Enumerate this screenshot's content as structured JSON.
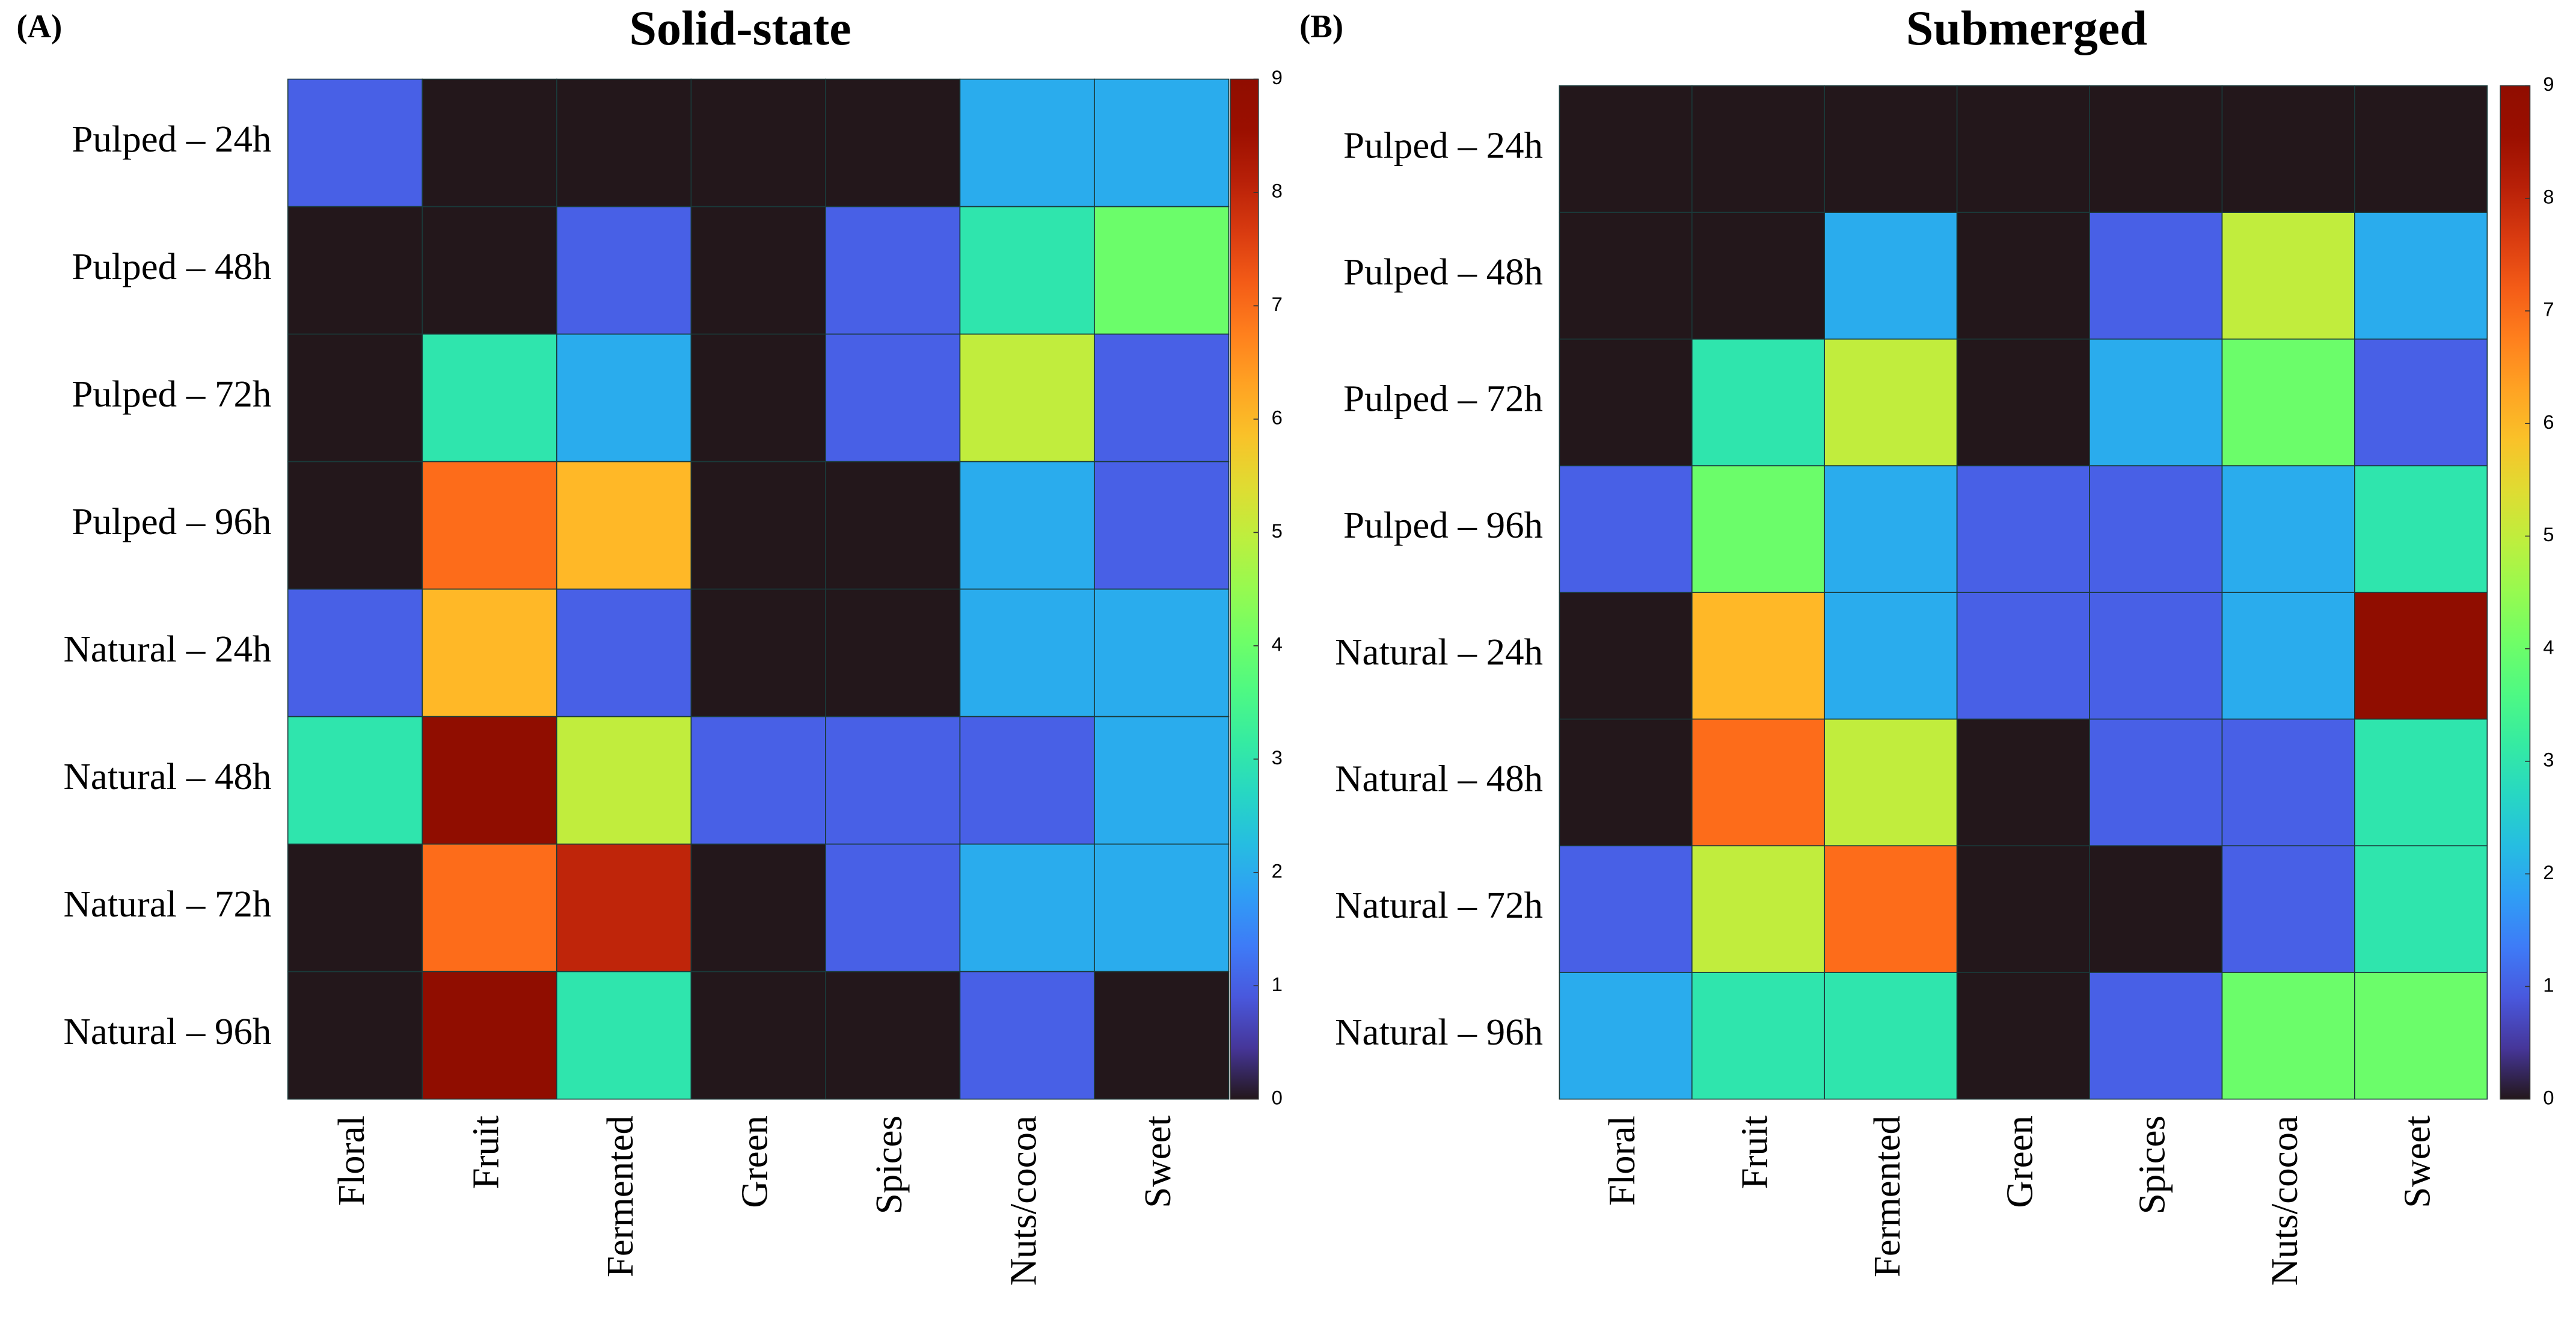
{
  "chart_data": [
    {
      "type": "heatmap",
      "panel_label": "(A)",
      "title": "Solid-state",
      "x_categories": [
        "Floral",
        "Fruit",
        "Fermented",
        "Green",
        "Spices",
        "Nuts/cocoa",
        "Sweet"
      ],
      "y_categories": [
        "Pulped – 24h",
        "Pulped – 48h",
        "Pulped – 72h",
        "Pulped – 96h",
        "Natural – 24h",
        "Natural – 48h",
        "Natural – 72h",
        "Natural – 96h"
      ],
      "values": [
        [
          1,
          0,
          0,
          0,
          0,
          2,
          2
        ],
        [
          0,
          0,
          1,
          0,
          1,
          3,
          4
        ],
        [
          0,
          3,
          2,
          0,
          1,
          5,
          1
        ],
        [
          0,
          7,
          6,
          0,
          0,
          2,
          1
        ],
        [
          1,
          6,
          1,
          0,
          0,
          2,
          2
        ],
        [
          3,
          9,
          5,
          1,
          1,
          1,
          2
        ],
        [
          0,
          7,
          8,
          0,
          1,
          2,
          2
        ],
        [
          0,
          9,
          3,
          0,
          0,
          1,
          0
        ]
      ],
      "colormap": "turbo",
      "clim": [
        0,
        9
      ],
      "colorbar_ticks": [
        0,
        1,
        2,
        3,
        4,
        5,
        6,
        7,
        8,
        9
      ]
    },
    {
      "type": "heatmap",
      "panel_label": "(B)",
      "title": "Submerged",
      "x_categories": [
        "Floral",
        "Fruit",
        "Fermented",
        "Green",
        "Spices",
        "Nuts/cocoa",
        "Sweet"
      ],
      "y_categories": [
        "Pulped – 24h",
        "Pulped – 48h",
        "Pulped – 72h",
        "Pulped – 96h",
        "Natural – 24h",
        "Natural – 48h",
        "Natural – 72h",
        "Natural – 96h"
      ],
      "values": [
        [
          0,
          0,
          0,
          0,
          0,
          0,
          0
        ],
        [
          0,
          0,
          2,
          0,
          1,
          5,
          2
        ],
        [
          0,
          3,
          5,
          0,
          2,
          4,
          1
        ],
        [
          1,
          4,
          2,
          1,
          1,
          2,
          3
        ],
        [
          0,
          6,
          2,
          1,
          1,
          2,
          9
        ],
        [
          0,
          7,
          5,
          0,
          1,
          1,
          3
        ],
        [
          1,
          5,
          7,
          0,
          0,
          1,
          3
        ],
        [
          2,
          3,
          3,
          0,
          1,
          4,
          4
        ]
      ],
      "colormap": "turbo",
      "clim": [
        0,
        9
      ],
      "colorbar_ticks": [
        0,
        1,
        2,
        3,
        4,
        5,
        6,
        7,
        8,
        9
      ]
    }
  ]
}
